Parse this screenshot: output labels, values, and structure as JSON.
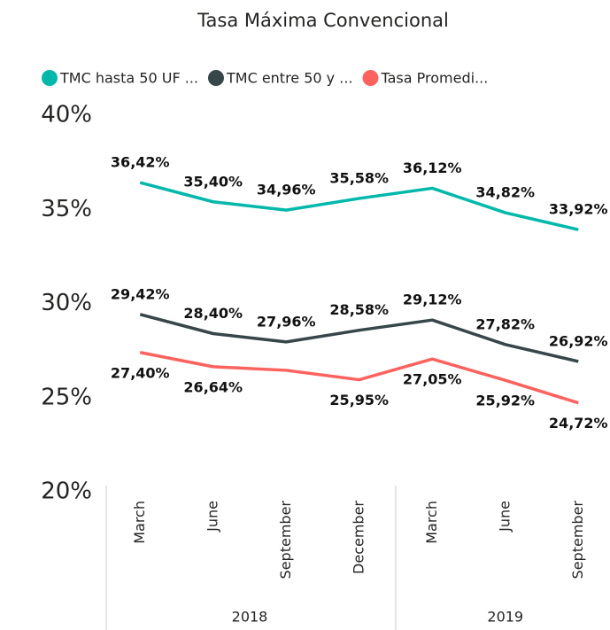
{
  "chart_data": {
    "type": "line",
    "title": "Tasa Máxima Convencional",
    "groups": [
      {
        "name": "2018",
        "categories": [
          "March",
          "June",
          "September",
          "December"
        ]
      },
      {
        "name": "2019",
        "categories": [
          "March",
          "June",
          "September"
        ]
      }
    ],
    "series": [
      {
        "name": "TMC hasta 50 UF ...",
        "color": "#01B8AA",
        "values": [
          36.42,
          35.4,
          34.96,
          35.58,
          36.12,
          34.82,
          33.92
        ],
        "value_labels": [
          "36,42%",
          "35,40%",
          "34,96%",
          "35,58%",
          "36,12%",
          "34,82%",
          "33,92%"
        ]
      },
      {
        "name": "TMC entre 50 y ...",
        "color": "#374649",
        "values": [
          29.42,
          28.4,
          27.96,
          28.58,
          29.12,
          27.82,
          26.92
        ],
        "value_labels": [
          "29,42%",
          "28,40%",
          "27,96%",
          "28,58%",
          "29,12%",
          "27,82%",
          "26,92%"
        ]
      },
      {
        "name": "Tasa Promedi...",
        "color": "#FD625E",
        "values": [
          27.4,
          26.64,
          26.45,
          25.95,
          27.05,
          25.92,
          24.72
        ],
        "value_labels": [
          "27,40%",
          "26,64%",
          null,
          "25,95%",
          "27,05%",
          "25,92%",
          "24,72%"
        ]
      }
    ],
    "ylim": [
      20,
      40
    ],
    "yticks": [
      {
        "value": 20,
        "label": "20%"
      },
      {
        "value": 25,
        "label": "25%"
      },
      {
        "value": 30,
        "label": "30%"
      },
      {
        "value": 35,
        "label": "35%"
      },
      {
        "value": 40,
        "label": "40%"
      }
    ],
    "legend": "top-left"
  }
}
